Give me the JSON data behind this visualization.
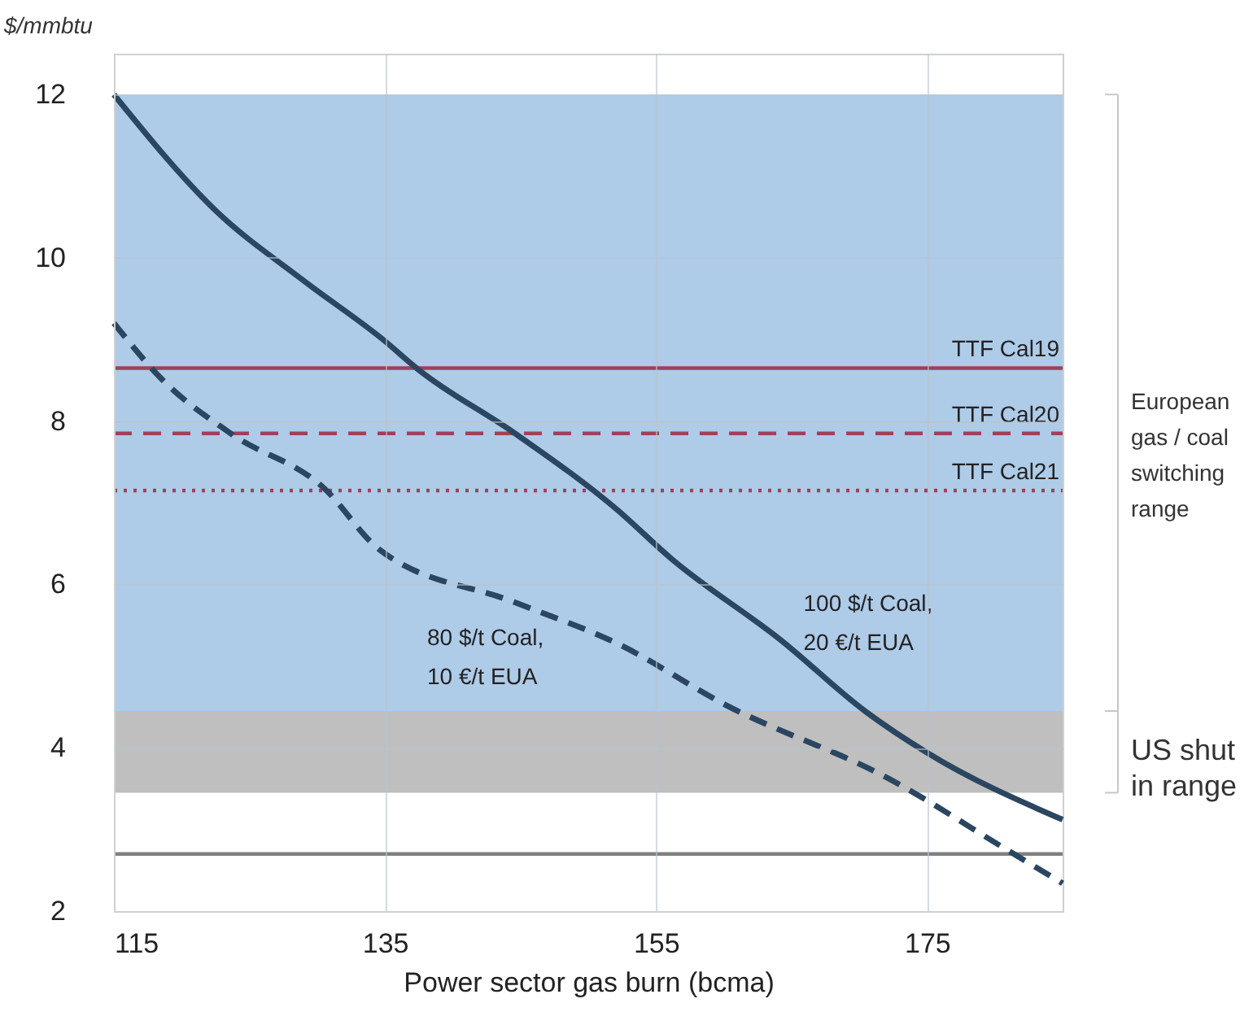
{
  "chart_data": {
    "type": "line",
    "xlabel": "Power sector gas burn (bcma)",
    "ylabel": "$/mmbtu",
    "xlim": [
      115,
      185
    ],
    "xticks": [
      115,
      135,
      155,
      175
    ],
    "ylim": [
      2,
      12.5
    ],
    "yticks": [
      2,
      4,
      6,
      8,
      10,
      12
    ],
    "grid": true,
    "marker": "none",
    "series": [
      {
        "name": "100 $/t Coal, 20 €/t EUA",
        "color": "#2b4660",
        "line_style": "solid",
        "x": [
          115,
          122.5,
          129,
          135,
          137.4,
          144.6,
          152.1,
          156.1,
          164.2,
          170.5,
          175,
          185
        ],
        "values": [
          12,
          10.58,
          9.72,
          8.98,
          8.64,
          7.85,
          6.92,
          6.32,
          5.32,
          4.44,
          3.94,
          3.12
        ]
      },
      {
        "name": "80 $/t Coal, 10 €/t EUA",
        "color": "#2b4660",
        "line_style": "dashed",
        "x": [
          115,
          118.5,
          123.7,
          130.5,
          134.5,
          144.6,
          152.1,
          160.2,
          172.2,
          181,
          185
        ],
        "values": [
          9.2,
          8.52,
          7.84,
          7.18,
          6.44,
          5.78,
          5.28,
          4.52,
          3.62,
          2.74,
          2.34
        ]
      }
    ],
    "ref_lines": [
      {
        "axis": "y",
        "value": 8.65,
        "label": "TTF Cal19",
        "color": "#a0405a",
        "line_style": "solid"
      },
      {
        "axis": "y",
        "value": 7.85,
        "label": "TTF Cal20",
        "color": "#a0405a",
        "line_style": "dashed"
      },
      {
        "axis": "y",
        "value": 7.15,
        "label": "TTF Cal21",
        "color": "#a0405a",
        "line_style": "dotted"
      },
      {
        "axis": "y",
        "value": 2.7,
        "label": null,
        "color": "#808080",
        "line_style": "solid"
      }
    ],
    "bands": [
      {
        "axis": "y",
        "from": 4.45,
        "to": 12,
        "label": "European gas / coal switching range",
        "color": "#aecbe8"
      },
      {
        "axis": "y",
        "from": 3.45,
        "to": 4.45,
        "label": "US shut in range",
        "color": "#bfbfbf"
      }
    ]
  }
}
